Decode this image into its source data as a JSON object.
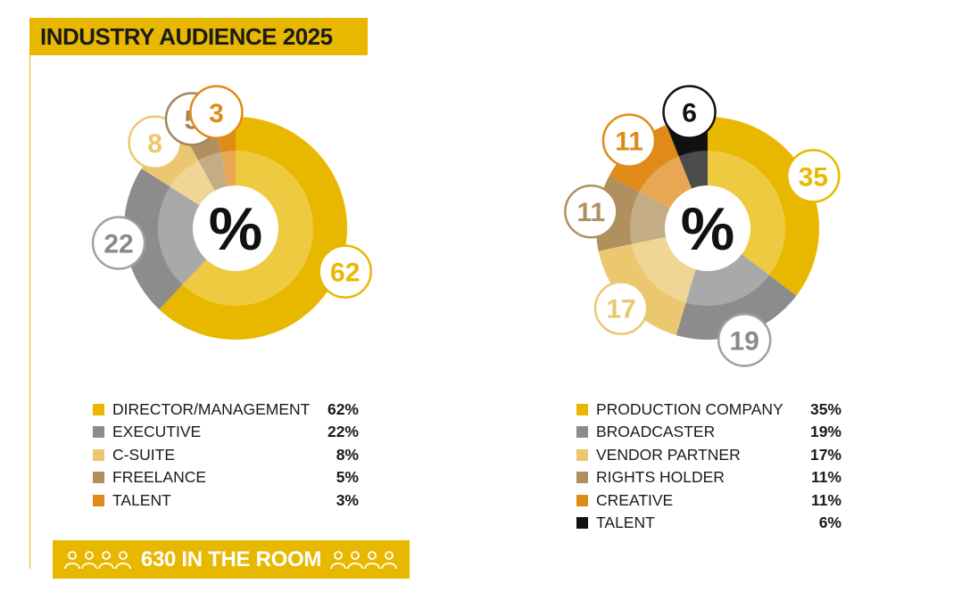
{
  "title": "INDUSTRY AUDIENCE 2025",
  "center_label": "%",
  "footer": {
    "text": "630 IN THE ROOM",
    "icon_left": "people-group-icon",
    "icon_right": "people-group-icon"
  },
  "chart_data": [
    {
      "type": "pie",
      "categories": [
        "DIRECTOR/MANAGEMENT",
        "EXECUTIVE",
        "C-SUITE",
        "FREELANCE",
        "TALENT"
      ],
      "values": [
        62,
        22,
        8,
        5,
        3
      ],
      "value_labels": [
        "62%",
        "22%",
        "8%",
        "5%",
        "3%"
      ],
      "colors": [
        "#e8b800",
        "#8c8c8c",
        "#ebc870",
        "#b0905e",
        "#e08a18"
      ],
      "bubble_styles": [
        "light",
        "light",
        "light",
        "dark",
        "light"
      ],
      "donut": true,
      "center_text": "%"
    },
    {
      "type": "pie",
      "categories": [
        "PRODUCTION COMPANY",
        "BROADCASTER",
        "VENDOR PARTNER",
        "RIGHTS HOLDER",
        "CREATIVE",
        "TALENT"
      ],
      "values": [
        35,
        19,
        17,
        11,
        11,
        6
      ],
      "value_labels": [
        "35%",
        "19%",
        "17%",
        "11%",
        "11%",
        "6%"
      ],
      "colors": [
        "#e8b800",
        "#8c8c8c",
        "#ebc870",
        "#b0905e",
        "#e08a18",
        "#111111"
      ],
      "bubble_styles": [
        "light",
        "light",
        "light",
        "light",
        "light",
        "black"
      ],
      "donut": true,
      "center_text": "%"
    }
  ]
}
